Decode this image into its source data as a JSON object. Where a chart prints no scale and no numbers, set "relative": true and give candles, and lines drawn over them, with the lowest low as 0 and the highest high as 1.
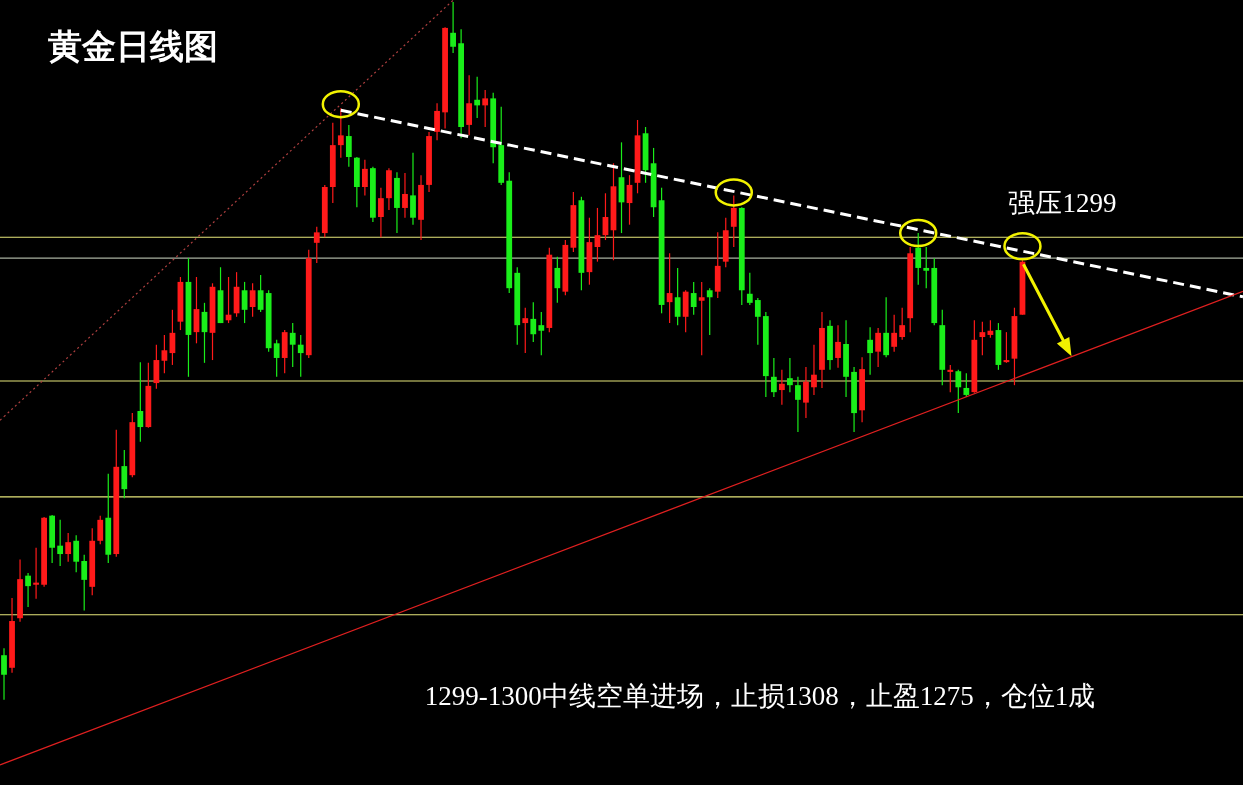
{
  "chart_data": {
    "type": "candlestick",
    "title": "黄金日线图",
    "relative": true,
    "categories": [
      null,
      null,
      null,
      null,
      null,
      null,
      null,
      null,
      null,
      null,
      null,
      null,
      null,
      null,
      null,
      null,
      null,
      null,
      null,
      null,
      null,
      null,
      null,
      null,
      null,
      null,
      null,
      null,
      null,
      null,
      null,
      null,
      null,
      null,
      null,
      null,
      null,
      null,
      null,
      null,
      null,
      null,
      null,
      null,
      null,
      null,
      null,
      null,
      null,
      null,
      null,
      null,
      null,
      null,
      null,
      null,
      null,
      null,
      null,
      null,
      null,
      null,
      null,
      null,
      null,
      null,
      null,
      null,
      null,
      null,
      null,
      null,
      null,
      null,
      null,
      null,
      null,
      null,
      null,
      null,
      null,
      null,
      null,
      null,
      null,
      null,
      null,
      null,
      null,
      null,
      null,
      null,
      null,
      null,
      null,
      null,
      null,
      null,
      null,
      null,
      null,
      null,
      null,
      null,
      null,
      null,
      null,
      null,
      null,
      null,
      null,
      null,
      null,
      null,
      null,
      null,
      null,
      null,
      null,
      null,
      null,
      null,
      null,
      null,
      null,
      null,
      null,
      null
    ],
    "ohlc": [
      [
        0.064,
        0.074,
        0,
        0.036
      ],
      [
        0.046,
        0.146,
        0.039,
        0.113
      ],
      [
        0.117,
        0.201,
        0.112,
        0.173
      ],
      [
        0.178,
        0.182,
        0.133,
        0.163
      ],
      [
        0.165,
        0.218,
        0.145,
        0.168
      ],
      [
        0.165,
        0.262,
        0.162,
        0.261
      ],
      [
        0.264,
        0.265,
        0.196,
        0.218
      ],
      [
        0.221,
        0.258,
        0.192,
        0.209
      ],
      [
        0.209,
        0.239,
        0.198,
        0.226
      ],
      [
        0.228,
        0.236,
        0.183,
        0.198
      ],
      [
        0.199,
        0.208,
        0.128,
        0.172
      ],
      [
        0.162,
        0.246,
        0.15,
        0.228
      ],
      [
        0.228,
        0.264,
        0.223,
        0.258
      ],
      [
        0.261,
        0.324,
        0.196,
        0.208
      ],
      [
        0.209,
        0.387,
        0.205,
        0.334
      ],
      [
        0.335,
        0.358,
        0.289,
        0.302
      ],
      [
        0.322,
        0.411,
        0.319,
        0.398
      ],
      [
        0.414,
        0.484,
        0.37,
        0.391
      ],
      [
        0.391,
        0.483,
        0.39,
        0.45
      ],
      [
        0.454,
        0.509,
        0.446,
        0.487
      ],
      [
        0.486,
        0.523,
        0.468,
        0.501
      ],
      [
        0.497,
        0.559,
        0.48,
        0.526
      ],
      [
        0.542,
        0.606,
        0.53,
        0.599
      ],
      [
        0.599,
        0.633,
        0.463,
        0.523
      ],
      [
        0.527,
        0.606,
        0.511,
        0.56
      ],
      [
        0.556,
        0.569,
        0.483,
        0.527
      ],
      [
        0.526,
        0.597,
        0.487,
        0.592
      ],
      [
        0.587,
        0.62,
        0.54,
        0.54
      ],
      [
        0.544,
        0.606,
        0.54,
        0.552
      ],
      [
        0.554,
        0.613,
        0.549,
        0.592
      ],
      [
        0.587,
        0.599,
        0.54,
        0.559
      ],
      [
        0.563,
        0.597,
        0.549,
        0.587
      ],
      [
        0.587,
        0.609,
        0.556,
        0.559
      ],
      [
        0.583,
        0.587,
        0.499,
        0.504
      ],
      [
        0.511,
        0.516,
        0.463,
        0.49
      ],
      [
        0.49,
        0.53,
        0.468,
        0.527
      ],
      [
        0.526,
        0.54,
        0.477,
        0.509
      ],
      [
        0.509,
        0.523,
        0.463,
        0.497
      ],
      [
        0.494,
        0.645,
        0.49,
        0.633
      ],
      [
        0.655,
        0.678,
        0.626,
        0.67
      ],
      [
        0.669,
        0.738,
        0.663,
        0.735
      ],
      [
        0.735,
        0.827,
        0.712,
        0.795
      ],
      [
        0.795,
        0.848,
        0.777,
        0.809
      ],
      [
        0.808,
        0.824,
        0.764,
        0.778
      ],
      [
        0.777,
        0.778,
        0.706,
        0.735
      ],
      [
        0.735,
        0.774,
        0.723,
        0.761
      ],
      [
        0.762,
        0.764,
        0.685,
        0.691
      ],
      [
        0.692,
        0.734,
        0.663,
        0.719
      ],
      [
        0.719,
        0.762,
        0.702,
        0.759
      ],
      [
        0.748,
        0.756,
        0.669,
        0.705
      ],
      [
        0.705,
        0.755,
        0.691,
        0.725
      ],
      [
        0.723,
        0.784,
        0.681,
        0.691
      ],
      [
        0.688,
        0.752,
        0.659,
        0.738
      ],
      [
        0.738,
        0.814,
        0.728,
        0.808
      ],
      [
        0.814,
        0.855,
        0.802,
        0.844
      ],
      [
        0.842,
        0.964,
        0.819,
        0.963
      ],
      [
        0.956,
        1,
        0.927,
        0.936
      ],
      [
        0.941,
        0.961,
        0.805,
        0.821
      ],
      [
        0.824,
        0.895,
        0.809,
        0.855
      ],
      [
        0.86,
        0.893,
        0.834,
        0.852
      ],
      [
        0.852,
        0.874,
        0.821,
        0.862
      ],
      [
        0.862,
        0.87,
        0.769,
        0.792
      ],
      [
        0.795,
        0.85,
        0.738,
        0.741
      ],
      [
        0.744,
        0.756,
        0.583,
        0.59
      ],
      [
        0.612,
        0.62,
        0.509,
        0.537
      ],
      [
        0.54,
        0.562,
        0.497,
        0.547
      ],
      [
        0.546,
        0.57,
        0.513,
        0.524
      ],
      [
        0.537,
        0.556,
        0.494,
        0.529
      ],
      [
        0.533,
        0.648,
        0.527,
        0.638
      ],
      [
        0.619,
        0.635,
        0.569,
        0.59
      ],
      [
        0.585,
        0.659,
        0.58,
        0.652
      ],
      [
        0.648,
        0.728,
        0.642,
        0.709
      ],
      [
        0.716,
        0.721,
        0.587,
        0.612
      ],
      [
        0.613,
        0.691,
        0.595,
        0.656
      ],
      [
        0.649,
        0.705,
        0.628,
        0.666
      ],
      [
        0.666,
        0.726,
        0.659,
        0.692
      ],
      [
        0.673,
        0.769,
        0.63,
        0.736
      ],
      [
        0.749,
        0.799,
        0.669,
        0.713
      ],
      [
        0.712,
        0.752,
        0.681,
        0.738
      ],
      [
        0.741,
        0.831,
        0.726,
        0.809
      ],
      [
        0.812,
        0.821,
        0.741,
        0.759
      ],
      [
        0.769,
        0.791,
        0.692,
        0.706
      ],
      [
        0.716,
        0.734,
        0.554,
        0.566
      ],
      [
        0.57,
        0.64,
        0.54,
        0.583
      ],
      [
        0.577,
        0.619,
        0.537,
        0.549
      ],
      [
        0.549,
        0.587,
        0.527,
        0.585
      ],
      [
        0.583,
        0.599,
        0.552,
        0.563
      ],
      [
        0.572,
        0.599,
        0.494,
        0.577
      ],
      [
        0.587,
        0.59,
        0.523,
        0.577
      ],
      [
        0.585,
        0.67,
        0.576,
        0.622
      ],
      [
        0.628,
        0.691,
        0.62,
        0.673
      ],
      [
        0.678,
        0.723,
        0.649,
        0.705
      ],
      [
        0.705,
        0.706,
        0.566,
        0.587
      ],
      [
        0.582,
        0.612,
        0.566,
        0.569
      ],
      [
        0.573,
        0.576,
        0.509,
        0.549
      ],
      [
        0.55,
        0.556,
        0.434,
        0.464
      ],
      [
        0.463,
        0.49,
        0.434,
        0.441
      ],
      [
        0.444,
        0.473,
        0.423,
        0.453
      ],
      [
        0.461,
        0.49,
        0.441,
        0.451
      ],
      [
        0.451,
        0.463,
        0.384,
        0.43
      ],
      [
        0.426,
        0.477,
        0.404,
        0.456
      ],
      [
        0.448,
        0.509,
        0.437,
        0.466
      ],
      [
        0.473,
        0.556,
        0.447,
        0.533
      ],
      [
        0.536,
        0.544,
        0.473,
        0.487
      ],
      [
        0.49,
        0.537,
        0.476,
        0.513
      ],
      [
        0.51,
        0.544,
        0.434,
        0.463
      ],
      [
        0.47,
        0.477,
        0.384,
        0.411
      ],
      [
        0.415,
        0.491,
        0.398,
        0.474
      ],
      [
        0.516,
        0.534,
        0.466,
        0.497
      ],
      [
        0.499,
        0.533,
        0.477,
        0.526
      ],
      [
        0.526,
        0.577,
        0.491,
        0.494
      ],
      [
        0.506,
        0.552,
        0.499,
        0.526
      ],
      [
        0.52,
        0.562,
        0.516,
        0.537
      ],
      [
        0.547,
        0.649,
        0.527,
        0.64
      ],
      [
        0.648,
        0.669,
        0.595,
        0.619
      ],
      [
        0.619,
        0.649,
        0.59,
        0.615
      ],
      [
        0.619,
        0.633,
        0.537,
        0.54
      ],
      [
        0.537,
        0.559,
        0.451,
        0.473
      ],
      [
        0.47,
        0.48,
        0.441,
        0.473
      ],
      [
        0.471,
        0.473,
        0.411,
        0.448
      ],
      [
        0.447,
        0.468,
        0.434,
        0.437
      ],
      [
        0.441,
        0.544,
        0.44,
        0.516
      ],
      [
        0.52,
        0.542,
        0.494,
        0.527
      ],
      [
        0.523,
        0.544,
        0.519,
        0.529
      ],
      [
        0.53,
        0.54,
        0.473,
        0.48
      ],
      [
        0.484,
        0.527,
        0.483,
        0.487
      ],
      [
        0.489,
        0.562,
        0.451,
        0.55
      ],
      [
        0.552,
        0.63,
        0.552,
        0.628
      ]
    ],
    "series": [
      {
        "type": "line",
        "values": [
          null,
          null,
          null,
          null,
          null,
          null,
          null,
          null,
          null,
          null,
          null,
          null,
          null,
          null,
          null,
          null,
          null,
          null,
          null,
          null,
          null,
          null,
          null,
          null,
          null,
          null,
          null,
          null,
          null,
          null,
          null,
          null,
          null,
          null,
          null,
          null,
          null,
          null,
          null,
          null,
          null,
          null,
          0.845,
          null,
          null,
          null,
          null,
          null,
          null,
          null,
          null,
          null,
          null,
          null,
          null,
          null,
          null,
          null,
          null,
          null,
          null,
          null,
          null,
          null,
          null,
          null,
          null,
          null,
          null,
          null,
          null,
          null,
          null,
          null,
          null,
          null,
          null,
          null,
          null,
          null,
          null,
          null,
          null,
          null,
          null,
          null,
          null,
          null,
          null,
          null,
          null,
          null,
          null,
          null,
          null,
          null,
          null,
          null,
          null,
          null,
          null,
          null,
          null,
          null,
          null,
          null,
          null,
          null,
          null,
          null,
          null,
          null,
          null,
          null,
          null,
          null,
          null,
          null,
          null,
          null,
          null,
          null,
          null,
          null,
          null,
          null,
          null,
          0.643
        ],
        "color": "#ffffff",
        "line_style": "dashed"
      },
      {
        "type": "line",
        "values": [
          -0.091,
          null,
          null,
          null,
          null,
          null,
          null,
          null,
          null,
          null,
          null,
          null,
          null,
          null,
          null,
          null,
          null,
          null,
          null,
          null,
          null,
          null,
          null,
          null,
          null,
          null,
          null,
          null,
          null,
          null,
          null,
          null,
          null,
          null,
          null,
          null,
          null,
          null,
          null,
          null,
          null,
          null,
          null,
          null,
          null,
          null,
          null,
          null,
          null,
          null,
          null,
          null,
          null,
          null,
          null,
          null,
          null,
          null,
          null,
          null,
          null,
          null,
          null,
          null,
          null,
          null,
          null,
          null,
          null,
          null,
          null,
          null,
          null,
          null,
          null,
          null,
          null,
          null,
          null,
          null,
          null,
          null,
          null,
          null,
          null,
          null,
          null,
          null,
          null,
          null,
          null,
          null,
          null,
          null,
          null,
          null,
          null,
          null,
          null,
          null,
          null,
          null,
          null,
          null,
          null,
          null,
          null,
          null,
          null,
          null,
          null,
          null,
          null,
          null,
          null,
          null,
          null,
          null,
          null,
          null,
          null,
          null,
          null,
          null,
          null,
          null,
          null,
          0.465
        ],
        "color": "#e02020",
        "line_style": "solid"
      },
      {
        "type": "line",
        "values": [
          0.406,
          null,
          null,
          null,
          null,
          null,
          null,
          null,
          null,
          null,
          null,
          null,
          null,
          null,
          null,
          null,
          null,
          null,
          null,
          null,
          null,
          null,
          null,
          null,
          null,
          null,
          null,
          null,
          null,
          null,
          null,
          null,
          null,
          null,
          null,
          null,
          null,
          null,
          null,
          null,
          null,
          null,
          null,
          null,
          null,
          null,
          null,
          null,
          null,
          null,
          null,
          null,
          null,
          null,
          null,
          0.992,
          null,
          null,
          null,
          null,
          null,
          null,
          null,
          null,
          null,
          null,
          null,
          null,
          null,
          null,
          null,
          null,
          null,
          null,
          null,
          null,
          null,
          null,
          null,
          null,
          null,
          null,
          null,
          null,
          null,
          null,
          null,
          null,
          null,
          null,
          null,
          null,
          null,
          null,
          null,
          null,
          null,
          null,
          null,
          null,
          null,
          null,
          null,
          null,
          null,
          null,
          null,
          null,
          null,
          null,
          null,
          null,
          null,
          null,
          null,
          null,
          null,
          null,
          null,
          null,
          null,
          null,
          null,
          null,
          null,
          null,
          null,
          null
        ],
        "color": "#b04040",
        "line_style": "dotted"
      }
    ],
    "ref_lines": [
      {
        "axis": "y",
        "value": 0.663,
        "color": "#e6e67a"
      },
      {
        "axis": "y",
        "value": 0.633,
        "color": "#a8b0a0"
      },
      {
        "axis": "y",
        "value": 0.457,
        "color": "#e6e67a"
      },
      {
        "axis": "y",
        "value": 0.291,
        "color": "#e6e67a"
      },
      {
        "axis": "y",
        "value": 0.122,
        "color": "#e6e67a"
      }
    ],
    "annotations": [
      "强压1299",
      "1299-1300中线空单进场，止损1308，止盈1275，仓位1成"
    ]
  }
}
